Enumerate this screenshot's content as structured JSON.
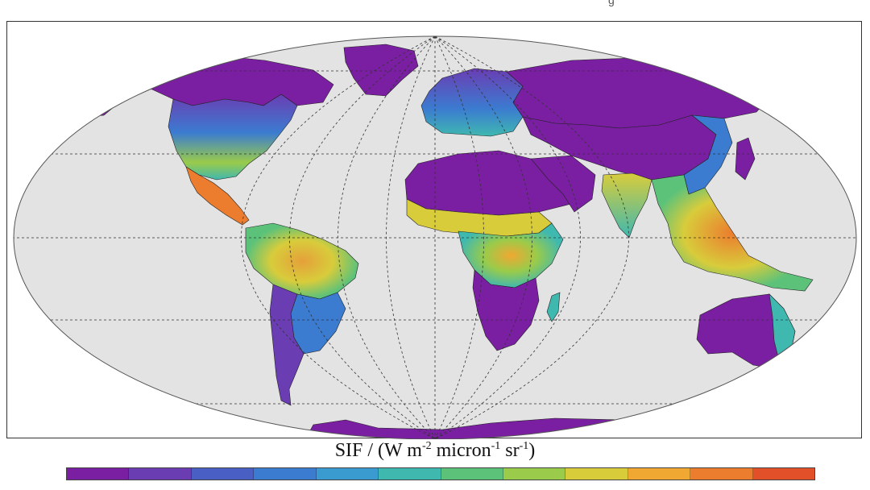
{
  "caption_fragment": "g",
  "legend": {
    "title_prefix": "SIF / (W m",
    "title_exp1": "-2",
    "title_mid1": " micron",
    "title_exp2": "-1",
    "title_mid2": " sr",
    "title_exp3": "-1",
    "title_suffix": ")",
    "colors": [
      "#7b1fa2",
      "#6a3db3",
      "#4a5fc4",
      "#3b7cd0",
      "#3a9bd0",
      "#3fb8b0",
      "#5cc27a",
      "#9acb4a",
      "#d8cc3b",
      "#f0a832",
      "#ec7c2e",
      "#e2502a"
    ]
  },
  "map": {
    "ocean_color": "#e3e3e3",
    "land_low_color": "#7b1fa2",
    "grid_style": "dashed",
    "regions": [
      {
        "name": "greenland",
        "level": 0
      },
      {
        "name": "north-america-north",
        "level": 0
      },
      {
        "name": "north-america-east",
        "level": 6
      },
      {
        "name": "central-america",
        "level": 10
      },
      {
        "name": "amazon",
        "level": 9
      },
      {
        "name": "south-america-east",
        "level": 4
      },
      {
        "name": "south-america-south",
        "level": 1
      },
      {
        "name": "europe",
        "level": 4
      },
      {
        "name": "russia",
        "level": 0
      },
      {
        "name": "sahara",
        "level": 0
      },
      {
        "name": "sahel",
        "level": 7
      },
      {
        "name": "central-africa",
        "level": 8
      },
      {
        "name": "southern-africa",
        "level": 1
      },
      {
        "name": "india",
        "level": 7
      },
      {
        "name": "southeast-asia",
        "level": 9
      },
      {
        "name": "china-east",
        "level": 4
      },
      {
        "name": "australia",
        "level": 0
      },
      {
        "name": "australia-east",
        "level": 4
      },
      {
        "name": "antarctica",
        "level": 0
      }
    ]
  }
}
